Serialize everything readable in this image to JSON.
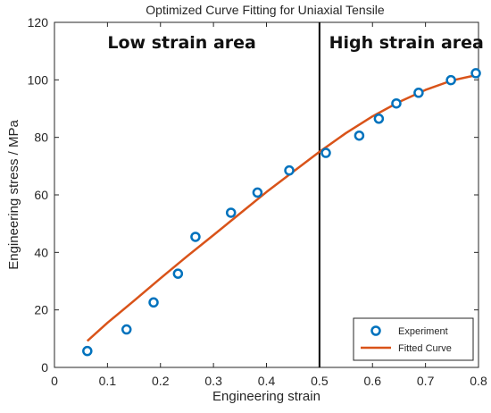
{
  "chart_data": {
    "type": "scatter",
    "title": "Optimized Curve Fitting for Uniaxial Tensile",
    "xlabel": "Engineering strain",
    "ylabel": "Engineering stress / MPa",
    "xlim": [
      0,
      0.8
    ],
    "ylim": [
      0,
      120
    ],
    "xticks": [
      "0",
      "0.1",
      "0.2",
      "0.3",
      "0.4",
      "0.5",
      "0.6",
      "0.7",
      "0.8"
    ],
    "yticks": [
      "0",
      "20",
      "40",
      "60",
      "80",
      "100",
      "120"
    ],
    "grid": false,
    "legend_position": "bottom-right",
    "series": [
      {
        "name": "Experiment",
        "kind": "markers",
        "color": "#0072BD",
        "x": [
          0.062,
          0.136,
          0.187,
          0.233,
          0.266,
          0.333,
          0.383,
          0.443,
          0.512,
          0.575,
          0.612,
          0.645,
          0.687,
          0.748,
          0.795
        ],
        "y": [
          5.7,
          13.2,
          22.6,
          32.6,
          45.4,
          53.8,
          60.8,
          68.5,
          74.6,
          80.6,
          86.5,
          91.8,
          95.5,
          99.9,
          102.3
        ]
      },
      {
        "name": "Fitted Curve",
        "kind": "line",
        "color": "#D95319",
        "x": [
          0.062,
          0.1,
          0.15,
          0.2,
          0.25,
          0.3,
          0.35,
          0.4,
          0.45,
          0.5,
          0.55,
          0.6,
          0.65,
          0.7,
          0.75,
          0.8
        ],
        "y": [
          9.2,
          15.5,
          23.2,
          31.0,
          38.6,
          46.0,
          53.5,
          61.0,
          68.0,
          75.0,
          81.5,
          87.3,
          92.3,
          96.5,
          99.8,
          101.8
        ]
      }
    ],
    "annotations": [
      {
        "text": "Low strain area",
        "x": 0.1,
        "y": 111
      },
      {
        "text": "High strain area",
        "x": 0.518,
        "y": 111
      }
    ],
    "vertical_line": {
      "x": 0.5,
      "color": "#000000"
    }
  }
}
